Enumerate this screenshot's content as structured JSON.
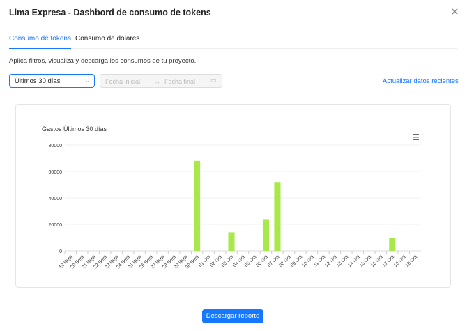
{
  "header": {
    "title": "Lima Expresa - Dashbord de consumo de tokens",
    "close_icon": "close-icon"
  },
  "tabs": [
    {
      "label": "Consumo de tokens",
      "active": true
    },
    {
      "label": "Consumo de dolares",
      "active": false
    }
  ],
  "description": "Aplica filtros, visualiza y descarga los consumos de tu proyecto.",
  "filters": {
    "period": "Últimos 30 días",
    "start_placeholder": "Fecha inicial",
    "end_placeholder": "Fecha final",
    "refresh_link": "Actualizar datos recientes"
  },
  "download_label": "Descargar reporte",
  "accent": "#1677ff",
  "chart_data": {
    "type": "bar",
    "title": "Gastos Últimos 30 días",
    "color": "#a9e84b",
    "ylim": [
      0,
      80000
    ],
    "yticks": [
      0,
      20000,
      40000,
      60000,
      80000
    ],
    "grid": true,
    "categories": [
      "19 Sept",
      "20 Sept",
      "21 Sept",
      "22 Sept",
      "23 Sept",
      "24 Sept",
      "25 Sept",
      "26 Sept",
      "27 Sept",
      "28 Sept",
      "29 Sept",
      "30 Sept",
      "01 Oct",
      "02 Oct",
      "03 Oct",
      "04 Oct",
      "05 Oct",
      "06 Oct",
      "07 Oct",
      "08 Oct",
      "09 Oct",
      "10 Oct",
      "11 Oct",
      "12 Oct",
      "13 Oct",
      "14 Oct",
      "15 Oct",
      "16 Oct",
      "17 Oct",
      "18 Oct",
      "19 Oct"
    ],
    "values": [
      0,
      0,
      0,
      0,
      0,
      0,
      0,
      0,
      0,
      0,
      0,
      68000,
      0,
      0,
      14000,
      0,
      0,
      24000,
      52000,
      0,
      0,
      0,
      0,
      0,
      0,
      0,
      0,
      0,
      9500,
      0,
      0
    ]
  }
}
